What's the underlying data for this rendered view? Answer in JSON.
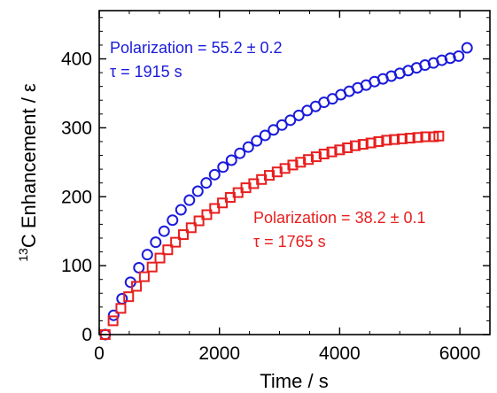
{
  "chart_data": {
    "type": "scatter",
    "xlabel": "Time / s",
    "ylabel_parts": {
      "sup": "13",
      "rest": "C Enhancement / ε"
    },
    "xlim": [
      0,
      6500
    ],
    "ylim": [
      0,
      470
    ],
    "x_ticks": [
      0,
      2000,
      4000,
      6000
    ],
    "y_ticks": [
      0,
      100,
      200,
      300,
      400
    ],
    "grid": false,
    "series": [
      {
        "marker": "circle",
        "color": "#1a1adb",
        "x": [
          100,
          240,
          380,
          520,
          660,
          800,
          940,
          1080,
          1220,
          1360,
          1500,
          1640,
          1780,
          1920,
          2060,
          2200,
          2340,
          2480,
          2620,
          2760,
          2900,
          3040,
          3180,
          3320,
          3460,
          3600,
          3740,
          3880,
          4020,
          4160,
          4300,
          4440,
          4580,
          4720,
          4860,
          5000,
          5140,
          5280,
          5420,
          5560,
          5700,
          5840,
          5980,
          6120
        ],
        "y": [
          0,
          28,
          52,
          76,
          97,
          116,
          134,
          150,
          166,
          181,
          195,
          208,
          220,
          232,
          243,
          253,
          263,
          272,
          281,
          289,
          297,
          304,
          311,
          318,
          325,
          331,
          337,
          342,
          348,
          353,
          358,
          362,
          367,
          371,
          375,
          379,
          383,
          387,
          391,
          394,
          398,
          401,
          404,
          416
        ]
      },
      {
        "marker": "square",
        "color": "#e81e1e",
        "x": [
          100,
          230,
          360,
          490,
          620,
          750,
          880,
          1010,
          1140,
          1270,
          1400,
          1530,
          1660,
          1790,
          1920,
          2050,
          2180,
          2310,
          2440,
          2570,
          2700,
          2830,
          2960,
          3090,
          3220,
          3350,
          3480,
          3610,
          3740,
          3870,
          4000,
          4130,
          4260,
          4390,
          4520,
          4650,
          4780,
          4910,
          5040,
          5170,
          5300,
          5430,
          5560,
          5650
        ],
        "y": [
          0,
          20,
          38,
          55,
          70,
          84,
          98,
          111,
          123,
          134,
          145,
          155,
          165,
          174,
          183,
          191,
          199,
          206,
          213,
          219,
          225,
          231,
          236,
          241,
          246,
          250,
          254,
          258,
          262,
          265,
          268,
          271,
          274,
          276,
          278,
          280,
          282,
          283,
          284,
          285,
          286,
          287,
          287,
          288
        ]
      }
    ],
    "annotations": [
      {
        "lines": [
          "Polarization = 55.2 ± 0.2",
          "τ = 1915 s"
        ],
        "color": "#1a1adb"
      },
      {
        "lines": [
          "Polarization = 38.2 ± 0.1",
          "τ = 1765 s"
        ],
        "color": "#e81e1e"
      }
    ]
  }
}
